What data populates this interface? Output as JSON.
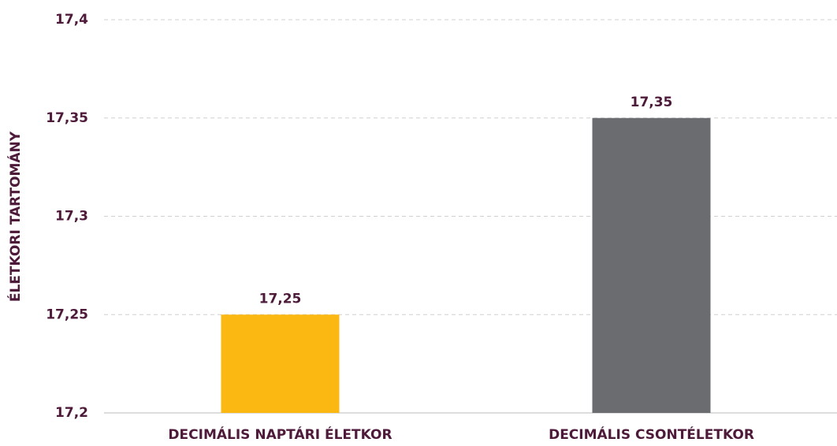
{
  "chart_data": {
    "type": "bar",
    "y_label": "ÉLETKORI TARTOMÁNY",
    "categories": [
      "DECIMÁLIS NAPTÁRI ÉLETKOR",
      "DECIMÁLIS CSONTÉLETKOR"
    ],
    "values": [
      17.25,
      17.35
    ],
    "value_labels": [
      "17,25",
      "17,35"
    ],
    "colors": [
      "#fbb813",
      "#6b6c70"
    ],
    "ylim": [
      17.2,
      17.4
    ],
    "yticks": [
      {
        "value": 17.2,
        "label": "17,2"
      },
      {
        "value": 17.25,
        "label": "17,25"
      },
      {
        "value": 17.3,
        "label": "17,3"
      },
      {
        "value": 17.35,
        "label": "17,35"
      },
      {
        "value": 17.4,
        "label": "17,4"
      }
    ],
    "grid": true
  }
}
